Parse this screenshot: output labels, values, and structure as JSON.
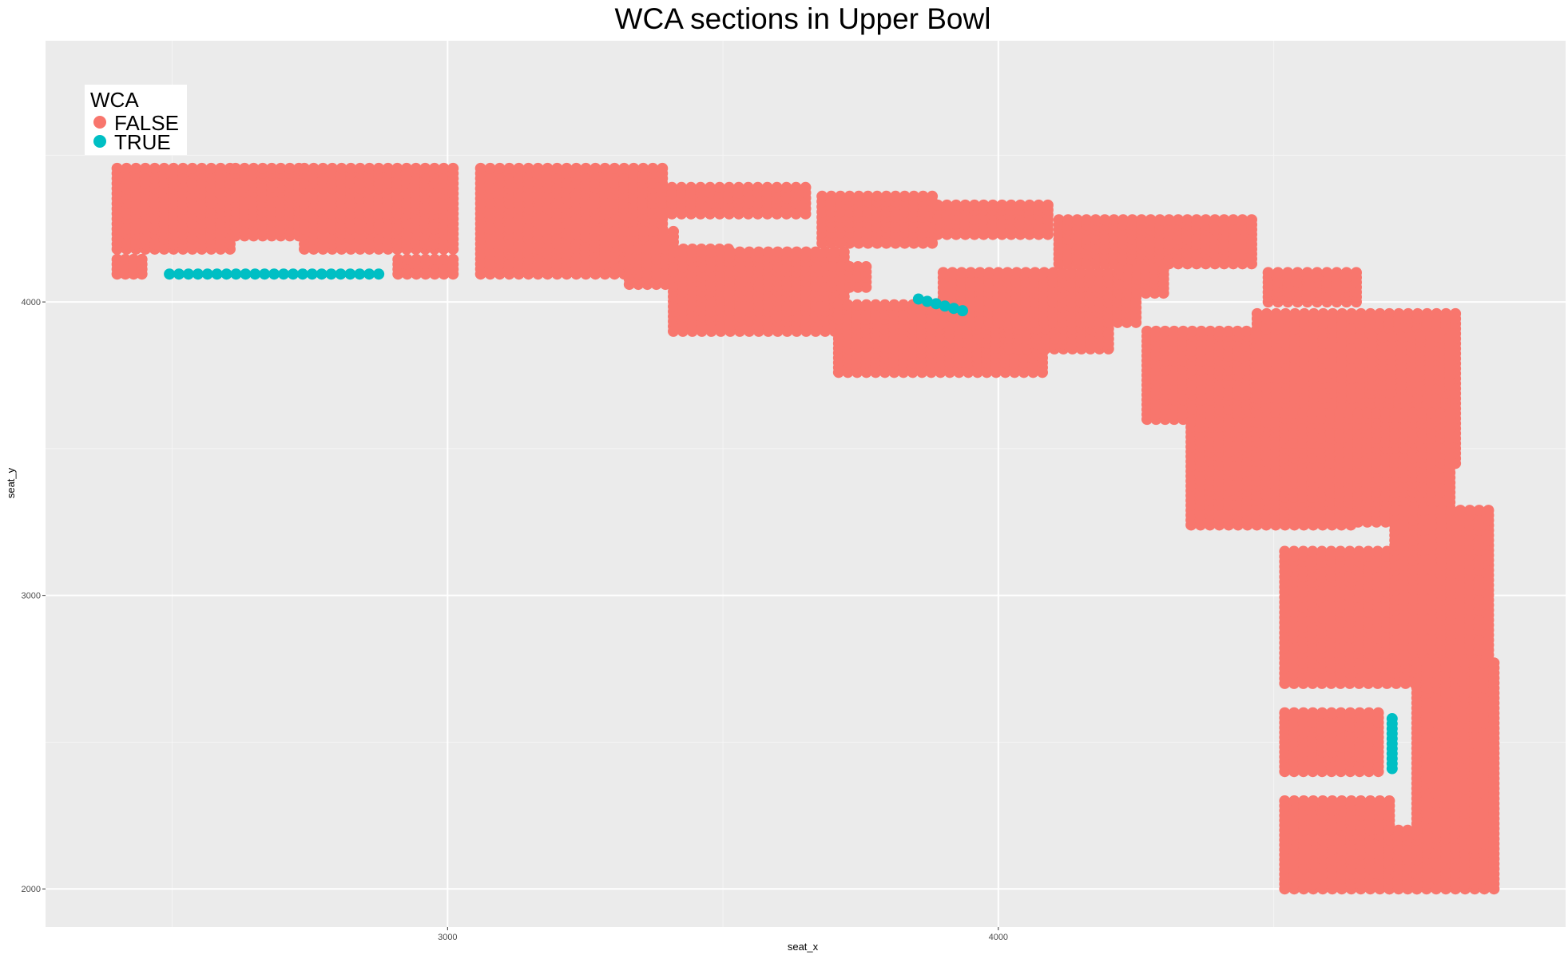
{
  "chart_data": {
    "type": "scatter",
    "title": "WCA sections in Upper Bowl",
    "xlabel": "seat_x",
    "ylabel": "seat_y",
    "xlim": [
      2270,
      5030
    ],
    "ylim": [
      1870,
      4890
    ],
    "x_ticks": [
      3000,
      4000
    ],
    "x_ticks_minor": [
      2500,
      3500,
      4500
    ],
    "y_ticks": [
      2000,
      3000,
      4000
    ],
    "y_ticks_minor": [
      2500,
      3500,
      4500
    ],
    "grid": true,
    "legend": {
      "title": "WCA",
      "position": "top-left",
      "entries": [
        {
          "label": "FALSE",
          "color": "#F8766D"
        },
        {
          "label": "TRUE",
          "color": "#00BFC4"
        }
      ]
    },
    "series": [
      {
        "name": "FALSE",
        "color": "#F8766D",
        "blocks": [
          {
            "x": [
              2400,
              2605
            ],
            "y": [
              4180,
              4455
            ],
            "dx": 17,
            "dy": 17
          },
          {
            "x": [
              2400,
              2445
            ],
            "y": [
              4095,
              4145
            ],
            "dx": 17,
            "dy": 17
          },
          {
            "x": [
              2615,
              2730
            ],
            "y": [
              4225,
              4455
            ],
            "dx": 17,
            "dy": 17
          },
          {
            "x": [
              2740,
              3010
            ],
            "y": [
              4180,
              4455
            ],
            "dx": 17,
            "dy": 17
          },
          {
            "x": [
              2910,
              3010
            ],
            "y": [
              4095,
              4145
            ],
            "dx": 17,
            "dy": 17
          },
          {
            "x": [
              3060,
              3390
            ],
            "y": [
              4095,
              4455
            ],
            "dx": 17,
            "dy": 17
          },
          {
            "x": [
              3250,
              3410
            ],
            "y": [
              4150,
              4240
            ],
            "dx": 17,
            "dy": 17
          },
          {
            "x": [
              3330,
              3510
            ],
            "y": [
              4060,
              4180
            ],
            "dx": 17,
            "dy": 17
          },
          {
            "x": [
              3410,
              3720
            ],
            "y": [
              3900,
              4170
            ],
            "dx": 17,
            "dy": 17
          },
          {
            "x": [
              3700,
              3760
            ],
            "y": [
              4050,
              4120
            ],
            "dx": 17,
            "dy": 17
          },
          {
            "x": [
              3390,
              3650
            ],
            "y": [
              4300,
              4390
            ],
            "dx": 17,
            "dy": 17
          },
          {
            "x": [
              3680,
              3880
            ],
            "y": [
              4200,
              4360
            ],
            "dx": 17,
            "dy": 17
          },
          {
            "x": [
              3890,
              4090
            ],
            "y": [
              4230,
              4330
            ],
            "dx": 17,
            "dy": 17
          },
          {
            "x": [
              3710,
              4080
            ],
            "y": [
              3760,
              3990
            ],
            "dx": 17,
            "dy": 17
          },
          {
            "x": [
              4020,
              4200
            ],
            "y": [
              3840,
              3960
            ],
            "dx": 17,
            "dy": 17
          },
          {
            "x": [
              3900,
              4250
            ],
            "y": [
              3930,
              4100
            ],
            "dx": 17,
            "dy": 17
          },
          {
            "x": [
              4110,
              4460
            ],
            "y": [
              4130,
              4280
            ],
            "dx": 17,
            "dy": 17
          },
          {
            "x": [
              4220,
              4300
            ],
            "y": [
              4030,
              4110
            ],
            "dx": 17,
            "dy": 17
          },
          {
            "x": [
              4270,
              4500
            ],
            "y": [
              3600,
              3900
            ],
            "dx": 17,
            "dy": 17
          },
          {
            "x": [
              4470,
              4830
            ],
            "y": [
              3450,
              3960
            ],
            "dx": 17,
            "dy": 17
          },
          {
            "x": [
              4490,
              4650
            ],
            "y": [
              4000,
              4100
            ],
            "dx": 17,
            "dy": 17
          },
          {
            "x": [
              4350,
              4640
            ],
            "y": [
              3240,
              3590
            ],
            "dx": 17,
            "dy": 17
          },
          {
            "x": [
              4520,
              4820
            ],
            "y": [
              3250,
              3620
            ],
            "dx": 17,
            "dy": 17
          },
          {
            "x": [
              4680,
              4820
            ],
            "y": [
              3700,
              3880
            ],
            "dx": 17,
            "dy": 17
          },
          {
            "x": [
              4520,
              4790
            ],
            "y": [
              2700,
              3150
            ],
            "dx": 17,
            "dy": 17
          },
          {
            "x": [
              4720,
              4890
            ],
            "y": [
              2780,
              3290
            ],
            "dx": 17,
            "dy": 17
          },
          {
            "x": [
              4760,
              4900
            ],
            "y": [
              2000,
              2770
            ],
            "dx": 17,
            "dy": 17
          },
          {
            "x": [
              4520,
              4690
            ],
            "y": [
              2400,
              2600
            ],
            "dx": 17,
            "dy": 17
          },
          {
            "x": [
              4520,
              4710
            ],
            "y": [
              2000,
              2300
            ],
            "dx": 17,
            "dy": 17
          },
          {
            "x": [
              4710,
              4760
            ],
            "y": [
              2000,
              2200
            ],
            "dx": 17,
            "dy": 17
          }
        ]
      },
      {
        "name": "TRUE",
        "color": "#00BFC4",
        "blocks": [
          {
            "x": [
              2495,
              2875
            ],
            "y": [
              4095,
              4095
            ],
            "dx": 17,
            "dy": 17
          },
          {
            "x": [
              3855,
              3935
            ],
            "y": [
              4010,
              3970
            ],
            "dx": 16,
            "dy": 16
          },
          {
            "x": [
              4715,
              4715
            ],
            "y": [
              2410,
              2580
            ],
            "dx": 17,
            "dy": 17
          }
        ]
      }
    ]
  }
}
